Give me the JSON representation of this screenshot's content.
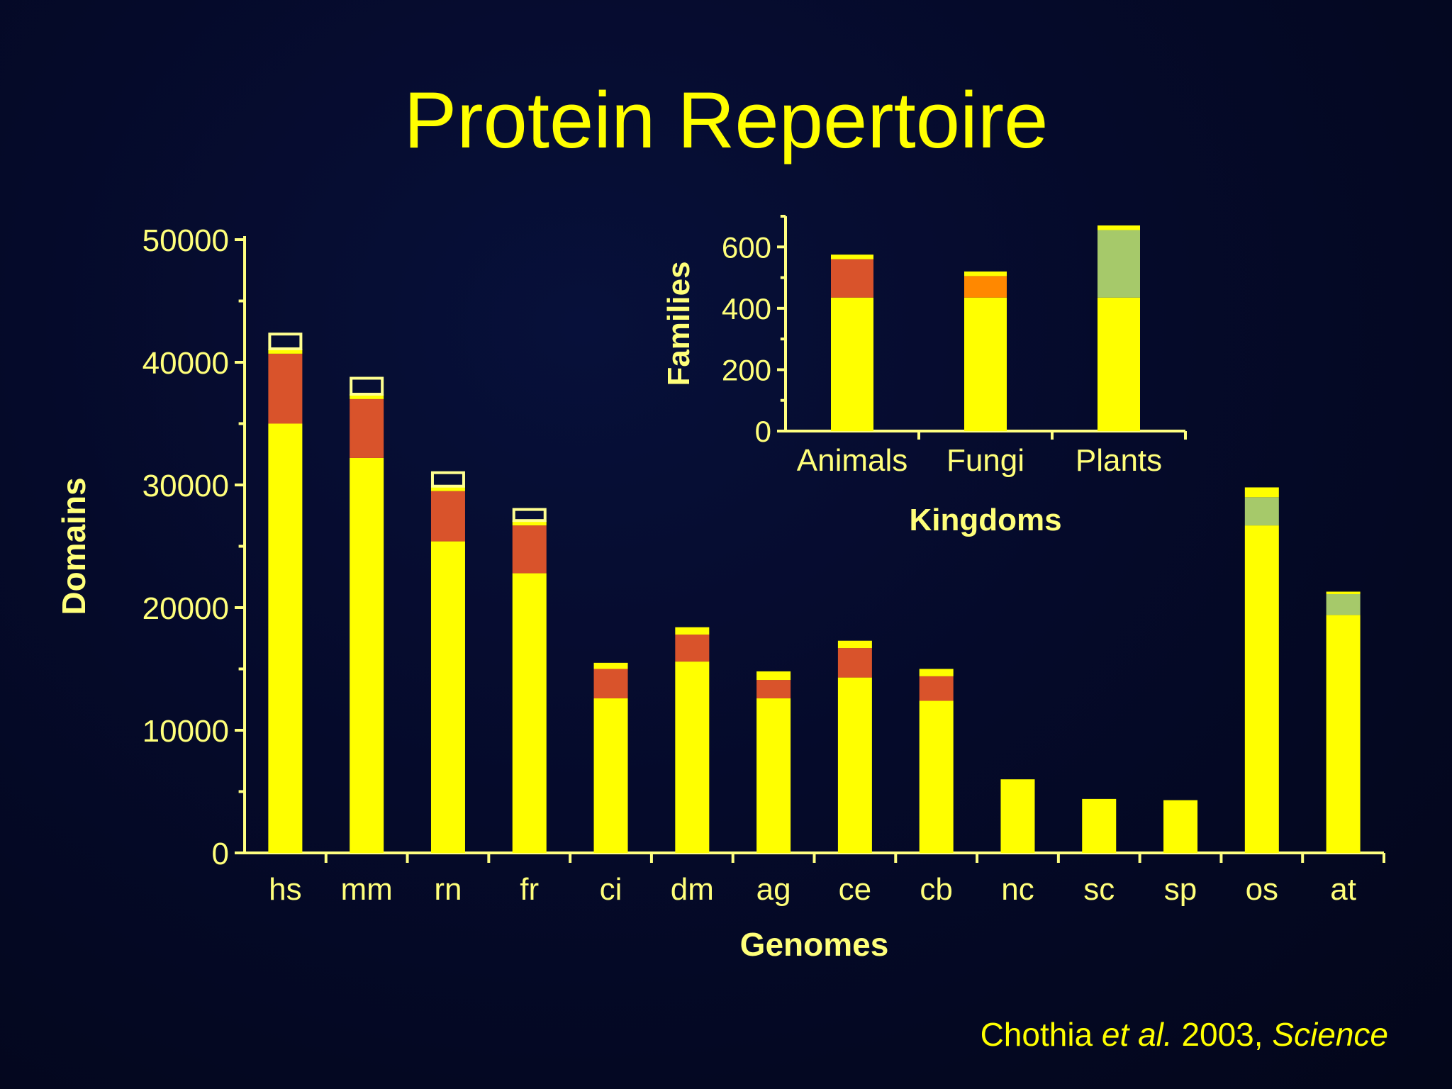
{
  "slide": {
    "title": "Protein Repertoire",
    "citation": {
      "author": "Chothia",
      "etal": "et al.",
      "year": "2003,",
      "journal": "Science"
    }
  },
  "colors": {
    "background": "#050a2a",
    "axis": "#ffff80",
    "text": "#ffff00",
    "label": "#ffff7a",
    "base": "#ffff00",
    "red": "#d9532b",
    "orange": "#ff8800",
    "green": "#a6c96a",
    "outline": "#ffff90"
  },
  "chart_data": [
    {
      "type": "bar",
      "stacked": true,
      "xlabel": "Genomes",
      "ylabel": "Domains",
      "ylim": [
        0,
        50000
      ],
      "yticks": [
        "0",
        "10000",
        "20000",
        "30000",
        "40000",
        "50000"
      ],
      "categories": [
        "hs",
        "mm",
        "rn",
        "fr",
        "ci",
        "dm",
        "ag",
        "ce",
        "cb",
        "nc",
        "sc",
        "sp",
        "os",
        "at"
      ],
      "series": [
        {
          "key": "base",
          "values": [
            35000,
            32200,
            25400,
            22800,
            12600,
            15600,
            12600,
            14300,
            12400,
            6000,
            4400,
            4300,
            26700,
            19400
          ]
        },
        {
          "key": "red",
          "values": [
            5700,
            4800,
            4100,
            3900,
            2400,
            2200,
            1500,
            2400,
            2000,
            0,
            0,
            0,
            0,
            0
          ]
        },
        {
          "key": "green",
          "values": [
            0,
            0,
            0,
            0,
            0,
            0,
            0,
            0,
            0,
            0,
            0,
            0,
            2300,
            1700
          ]
        },
        {
          "key": "top",
          "values": [
            400,
            400,
            400,
            400,
            500,
            600,
            700,
            600,
            600,
            0,
            0,
            0,
            800,
            200
          ]
        },
        {
          "key": "outline",
          "values": [
            1200,
            1300,
            1100,
            900,
            0,
            0,
            0,
            0,
            0,
            0,
            0,
            0,
            0,
            0
          ]
        }
      ]
    },
    {
      "type": "bar",
      "stacked": true,
      "xlabel": "Kingdoms",
      "ylabel": "Families",
      "ylim": [
        0,
        700
      ],
      "yticks": [
        "0",
        "200",
        "400",
        "600"
      ],
      "categories": [
        "Animals",
        "Fungi",
        "Plants"
      ],
      "series": [
        {
          "key": "base",
          "values": [
            435,
            435,
            435
          ]
        },
        {
          "key": "red",
          "values": [
            125,
            0,
            0
          ]
        },
        {
          "key": "orange",
          "values": [
            0,
            70,
            0
          ]
        },
        {
          "key": "green",
          "values": [
            0,
            0,
            220
          ]
        },
        {
          "key": "top",
          "values": [
            15,
            15,
            15
          ]
        }
      ]
    }
  ]
}
